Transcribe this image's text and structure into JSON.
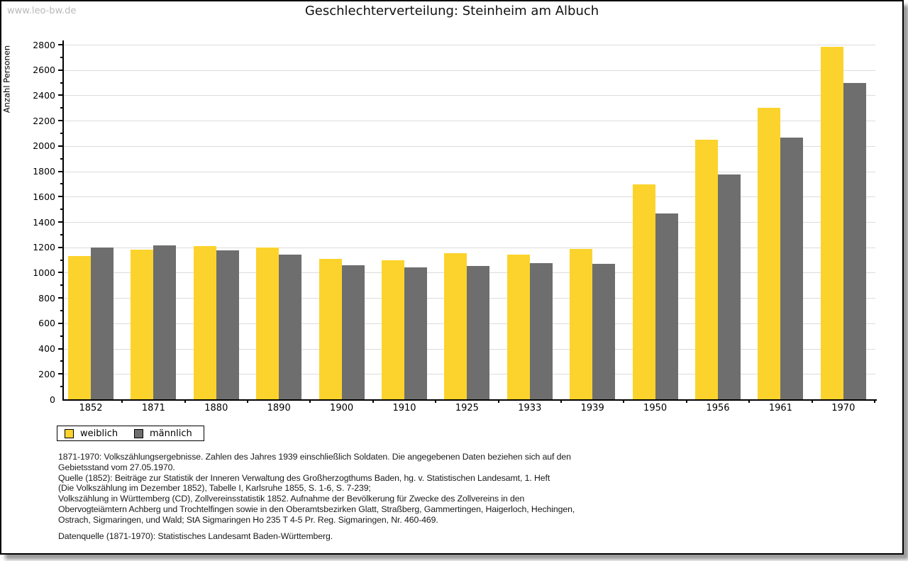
{
  "page": {
    "watermark": "www.leo-bw.de",
    "title": "Geschlechterverteilung: Steinheim am Albuch"
  },
  "chart_data": {
    "type": "bar",
    "title": "Geschlechterverteilung: Steinheim am Albuch",
    "xlabel": "",
    "ylabel": "Anzahl Personen",
    "categories": [
      "1852",
      "1871",
      "1880",
      "1890",
      "1900",
      "1910",
      "1925",
      "1933",
      "1939",
      "1950",
      "1956",
      "1961",
      "1970"
    ],
    "series": [
      {
        "name": "weiblich",
        "color": "#fcd32c",
        "values": [
          1130,
          1180,
          1210,
          1200,
          1110,
          1100,
          1155,
          1145,
          1185,
          1695,
          2050,
          2300,
          2785
        ]
      },
      {
        "name": "männlich",
        "color": "#6e6e6e",
        "values": [
          1200,
          1215,
          1175,
          1145,
          1060,
          1040,
          1055,
          1075,
          1070,
          1465,
          1775,
          2065,
          2495
        ]
      }
    ],
    "ylim": [
      0,
      2800
    ],
    "ytick_step": 200,
    "minor_tick_step": 100,
    "grid": true,
    "gridline_color": "#dcdcdc",
    "legend_position": "bottom-left"
  },
  "footer": {
    "notes": [
      "1871-1970: Volkszählungsergebnisse. Zahlen des Jahres 1939 einschließlich Soldaten. Die angegebenen Daten beziehen sich auf den",
      "Gebietsstand vom 27.05.1970.",
      "Quelle (1852): Beiträge zur Statistik der Inneren Verwaltung des Großherzogthums Baden, hg. v. Statistischen Landesamt, 1. Heft",
      "(Die Volkszählung im Dezember 1852), Tabelle I, Karlsruhe 1855, S. 1-6, S. 7-239;",
      "Volkszählung in Württemberg (CD), Zollvereinsstatistik 1852. Aufnahme der Bevölkerung für Zwecke des Zollvereins in den",
      "Obervogteiämtern Achberg und Trochtelfingen sowie in den Oberamtsbezirken Glatt, Straßberg, Gammertingen, Haigerloch, Hechingen,",
      "Ostrach, Sigmaringen, und Wald; StA Sigmaringen Ho 235 T 4-5 Pr. Reg. Sigmaringen, Nr. 460-469."
    ],
    "datasource": "Datenquelle (1871-1970): Statistisches Landesamt Baden-Württemberg."
  }
}
